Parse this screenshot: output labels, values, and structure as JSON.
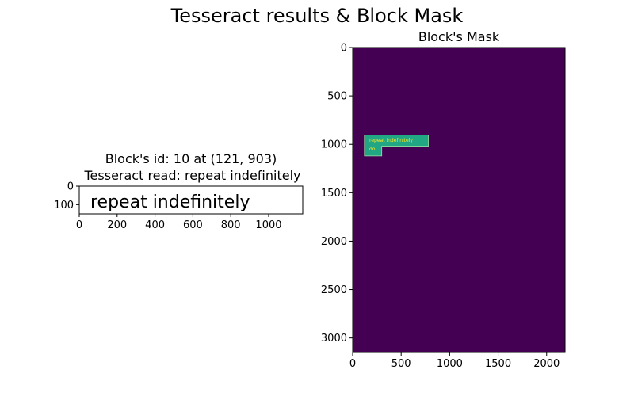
{
  "figure": {
    "suptitle": "Tesseract results & Block Mask"
  },
  "left_panel": {
    "title_line1": "Block's id: 10 at (121, 903)",
    "title_line2": "Tesseract read: repeat indefinitely",
    "image_text": "repeat indefinitely"
  },
  "right_panel": {
    "title": "Block's Mask",
    "mask_text_line1": "repeat indefinitely",
    "mask_text_line2": "do"
  },
  "colors": {
    "mask_background": "#440154",
    "mask_block": "#22a785",
    "mask_text": "#fde725",
    "axes": "#000000"
  },
  "chart_data": [
    {
      "type": "image",
      "xlim": [
        0,
        1180
      ],
      "ylim": [
        150,
        0
      ],
      "xticks": [
        0,
        200,
        400,
        600,
        800,
        1000
      ],
      "yticks": [
        0,
        100
      ],
      "content": "repeat indefinitely"
    },
    {
      "type": "heatmap",
      "xlim": [
        0,
        2190
      ],
      "ylim": [
        3150,
        0
      ],
      "xticks": [
        0,
        500,
        1000,
        1500,
        2000
      ],
      "yticks": [
        0,
        500,
        1000,
        1500,
        2000,
        2500,
        3000
      ],
      "background_value": 0,
      "block_value": 1,
      "block_polygon": [
        [
          121,
          903
        ],
        [
          780,
          903
        ],
        [
          780,
          1020
        ],
        [
          300,
          1020
        ],
        [
          300,
          1120
        ],
        [
          121,
          1120
        ]
      ]
    }
  ]
}
